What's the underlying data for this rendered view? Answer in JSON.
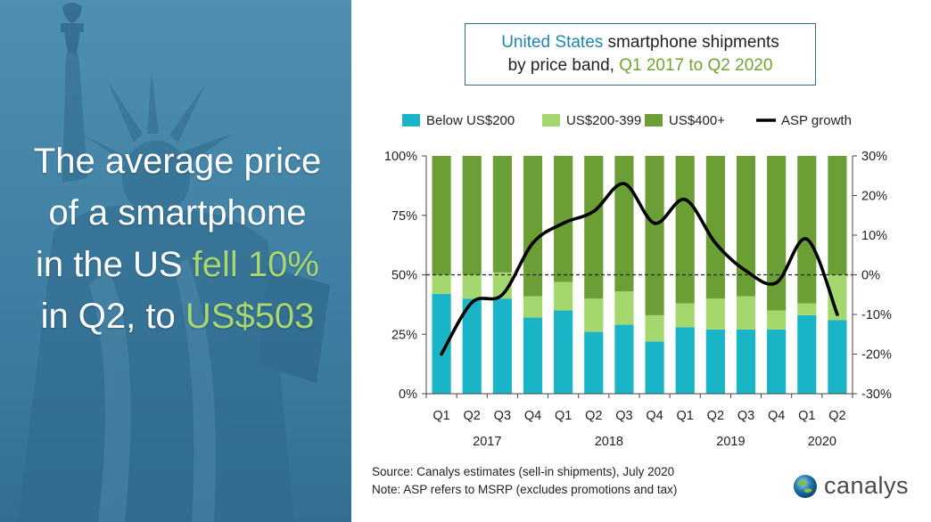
{
  "headline": {
    "line1": "The average price",
    "line2": "of a smartphone",
    "line3_pre": "in the US ",
    "line3_hl": "fell 10%",
    "line4_pre": "in Q2, to ",
    "line4_hl": "US$503"
  },
  "title": {
    "part1": "United States",
    "part2": " smartphone shipments",
    "part3": "by price band, ",
    "part4": "Q1 2017 to Q2 2020"
  },
  "colors": {
    "below200": "#19b5c6",
    "mid": "#a4d86e",
    "high": "#6c9e36",
    "asp": "#000000",
    "headline_highlight": "#a8d672"
  },
  "chart_data": {
    "type": "bar",
    "stacked": true,
    "categories": [
      "Q1",
      "Q2",
      "Q3",
      "Q4",
      "Q1",
      "Q2",
      "Q3",
      "Q4",
      "Q1",
      "Q2",
      "Q3",
      "Q4",
      "Q1",
      "Q2"
    ],
    "years": [
      {
        "label": "2017",
        "from": 0,
        "to": 3
      },
      {
        "label": "2018",
        "from": 4,
        "to": 7
      },
      {
        "label": "2019",
        "from": 8,
        "to": 11
      },
      {
        "label": "2020",
        "from": 12,
        "to": 13
      }
    ],
    "series": [
      {
        "name": "Below US$200",
        "values": [
          42,
          40,
          40,
          32,
          35,
          26,
          29,
          22,
          28,
          27,
          27,
          27,
          33,
          31
        ]
      },
      {
        "name": "US$200-399",
        "values": [
          8,
          10,
          11,
          9,
          12,
          14,
          14,
          11,
          10,
          13,
          14,
          8,
          5,
          19
        ]
      },
      {
        "name": "US$400+",
        "values": [
          50,
          50,
          49,
          59,
          53,
          60,
          57,
          67,
          62,
          60,
          59,
          65,
          62,
          50
        ]
      }
    ],
    "line": {
      "name": "ASP growth",
      "values": [
        -20,
        -7,
        -5,
        8,
        13,
        16,
        23,
        13,
        19,
        8,
        1,
        -2,
        9,
        -10
      ]
    },
    "ylim": [
      0,
      100
    ],
    "yticks": [
      "0%",
      "25%",
      "50%",
      "75%",
      "100%"
    ],
    "y2lim": [
      -30,
      30
    ],
    "y2ticks": [
      "-30%",
      "-20%",
      "-10%",
      "0%",
      "10%",
      "20%",
      "30%"
    ],
    "legend_position": "top",
    "grid": false
  },
  "source_line": "Source: Canalys estimates (sell-in shipments), July 2020",
  "note_line": "Note: ASP refers to MSRP (excludes promotions and tax)",
  "logo_text": "canalys"
}
